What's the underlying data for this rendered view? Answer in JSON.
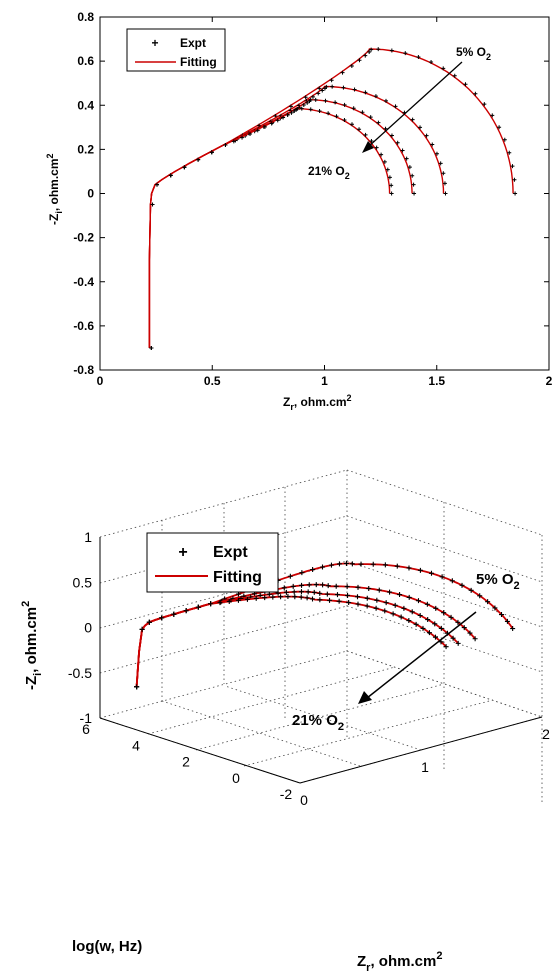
{
  "colors": {
    "expt": "#000000",
    "fitting": "#cc0000",
    "axes": "#000000",
    "grid": "#555555"
  },
  "chart_data": [
    {
      "type": "line",
      "view": "2d",
      "title": "",
      "xlabel": {
        "main": "Z",
        "sub": "r",
        "rest": ", ohm.cm",
        "sup": "2"
      },
      "ylabel": {
        "main": "-Z",
        "sub": "i",
        "rest": ", ohm.cm",
        "sup": "2"
      },
      "xlim": [
        0,
        2
      ],
      "ylim": [
        -0.8,
        0.8
      ],
      "xticks": [
        "0",
        "0.5",
        "1",
        "1.5",
        "2"
      ],
      "yticks": [
        "-0.8",
        "-0.6",
        "-0.4",
        "-0.2",
        "0",
        "0.2",
        "0.4",
        "0.6",
        "0.8"
      ],
      "legend": {
        "position": "top-left",
        "entries": [
          "Expt",
          "Fitting"
        ]
      },
      "annotations": [
        {
          "text": "5% O",
          "sub": "2"
        },
        {
          "text": "21% O",
          "sub": "2"
        }
      ],
      "inductive_tail": {
        "x": [
          0.22,
          0.22,
          0.225,
          0.23,
          0.245
        ],
        "y": [
          -0.7,
          -0.3,
          -0.05,
          0.0,
          0.04
        ]
      },
      "series": [
        {
          "group": "5% O2",
          "x_start": 0.245,
          "x_end": 1.84,
          "peak_x": 1.2,
          "peak_y": 0.655
        },
        {
          "group": "",
          "x_start": 0.245,
          "x_end": 1.53,
          "peak_x": 1.0,
          "peak_y": 0.485
        },
        {
          "group": "",
          "x_start": 0.245,
          "x_end": 1.39,
          "peak_x": 0.93,
          "peak_y": 0.425
        },
        {
          "group": "21% O2",
          "x_start": 0.245,
          "x_end": 1.29,
          "peak_x": 0.87,
          "peak_y": 0.385
        }
      ]
    },
    {
      "type": "line",
      "view": "3d",
      "title": "",
      "xlabel": {
        "main": "Z",
        "sub": "r",
        "rest": ", ohm.cm",
        "sup": "2"
      },
      "ylabel": {
        "main": "log(w, Hz)"
      },
      "zlabel": {
        "main": "-Z",
        "sub": "i",
        "rest": ", ohm.cm",
        "sup": "2"
      },
      "xlim": [
        0,
        2
      ],
      "ylim": [
        -2,
        6
      ],
      "zlim": [
        -1,
        1
      ],
      "xticks": [
        "0",
        "1",
        "2"
      ],
      "yticks": [
        "-2",
        "0",
        "2",
        "4",
        "6"
      ],
      "zticks": [
        "-1",
        "-0.5",
        "0",
        "0.5",
        "1"
      ],
      "legend": {
        "position": "top-left",
        "entries": [
          "Expt",
          "Fitting"
        ]
      },
      "annotations": [
        {
          "text": "5% O",
          "sub": "2"
        },
        {
          "text": "21% O",
          "sub": "2"
        }
      ],
      "series_ref": "same spectra as 2D plot, plotted against log frequency"
    }
  ]
}
